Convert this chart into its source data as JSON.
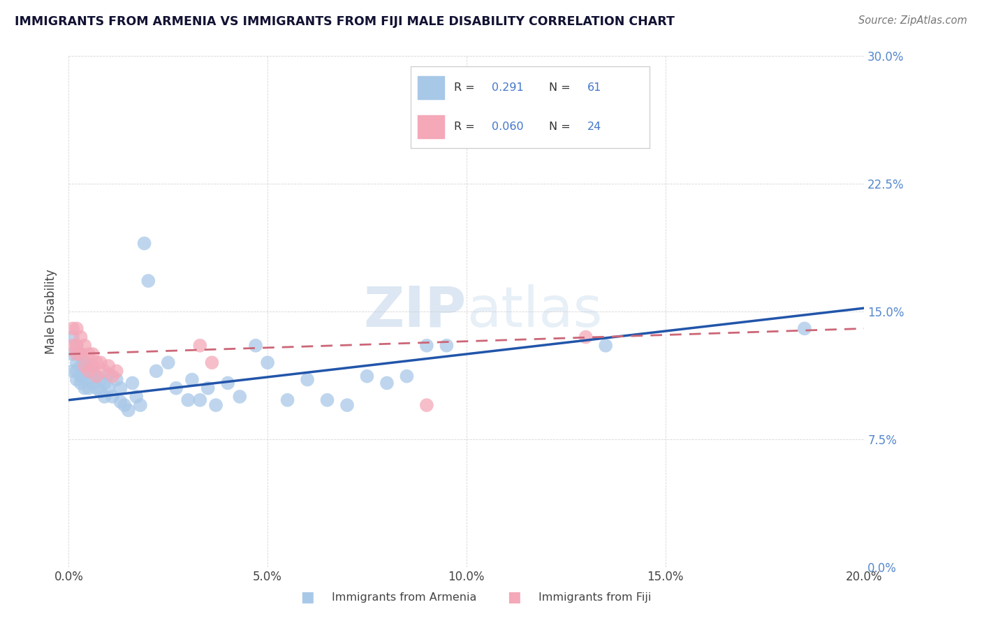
{
  "title": "IMMIGRANTS FROM ARMENIA VS IMMIGRANTS FROM FIJI MALE DISABILITY CORRELATION CHART",
  "source": "Source: ZipAtlas.com",
  "ylabel": "Male Disability",
  "legend_label_1": "Immigrants from Armenia",
  "legend_label_2": "Immigrants from Fiji",
  "R1": 0.291,
  "N1": 61,
  "R2": 0.06,
  "N2": 24,
  "color1": "#A8C8E8",
  "color2": "#F4A8B8",
  "trendline1_color": "#2255AA",
  "trendline2_color": "#CC6677",
  "xlim": [
    0.0,
    0.2
  ],
  "ylim": [
    0.0,
    0.3
  ],
  "xticks": [
    0.0,
    0.05,
    0.1,
    0.15,
    0.2
  ],
  "yticks": [
    0.0,
    0.075,
    0.15,
    0.225,
    0.3
  ],
  "background": "#FFFFFF",
  "armenia_x": [
    0.001,
    0.001,
    0.001,
    0.002,
    0.002,
    0.002,
    0.002,
    0.003,
    0.003,
    0.003,
    0.003,
    0.004,
    0.004,
    0.004,
    0.005,
    0.005,
    0.005,
    0.006,
    0.006,
    0.007,
    0.007,
    0.008,
    0.008,
    0.009,
    0.009,
    0.01,
    0.01,
    0.011,
    0.012,
    0.013,
    0.013,
    0.014,
    0.015,
    0.016,
    0.017,
    0.018,
    0.019,
    0.02,
    0.022,
    0.025,
    0.027,
    0.03,
    0.031,
    0.033,
    0.035,
    0.037,
    0.04,
    0.043,
    0.047,
    0.05,
    0.055,
    0.06,
    0.065,
    0.07,
    0.075,
    0.08,
    0.085,
    0.09,
    0.095,
    0.135,
    0.185
  ],
  "armenia_y": [
    0.135,
    0.125,
    0.115,
    0.13,
    0.12,
    0.115,
    0.11,
    0.125,
    0.118,
    0.112,
    0.108,
    0.12,
    0.113,
    0.105,
    0.118,
    0.11,
    0.105,
    0.115,
    0.108,
    0.112,
    0.105,
    0.11,
    0.103,
    0.108,
    0.1,
    0.113,
    0.105,
    0.1,
    0.11,
    0.105,
    0.097,
    0.095,
    0.092,
    0.108,
    0.1,
    0.095,
    0.19,
    0.168,
    0.115,
    0.12,
    0.105,
    0.098,
    0.11,
    0.098,
    0.105,
    0.095,
    0.108,
    0.1,
    0.13,
    0.12,
    0.098,
    0.11,
    0.098,
    0.095,
    0.112,
    0.108,
    0.112,
    0.13,
    0.13,
    0.13,
    0.14
  ],
  "fiji_x": [
    0.001,
    0.001,
    0.002,
    0.002,
    0.002,
    0.003,
    0.003,
    0.004,
    0.004,
    0.005,
    0.005,
    0.006,
    0.006,
    0.007,
    0.007,
    0.008,
    0.009,
    0.01,
    0.011,
    0.012,
    0.033,
    0.036,
    0.09,
    0.13
  ],
  "fiji_y": [
    0.14,
    0.13,
    0.14,
    0.13,
    0.125,
    0.135,
    0.125,
    0.13,
    0.118,
    0.125,
    0.115,
    0.125,
    0.118,
    0.12,
    0.112,
    0.12,
    0.115,
    0.118,
    0.112,
    0.115,
    0.13,
    0.12,
    0.095,
    0.135
  ],
  "trendline1_start_y": 0.098,
  "trendline1_end_y": 0.152,
  "trendline2_start_y": 0.125,
  "trendline2_end_y": 0.14
}
